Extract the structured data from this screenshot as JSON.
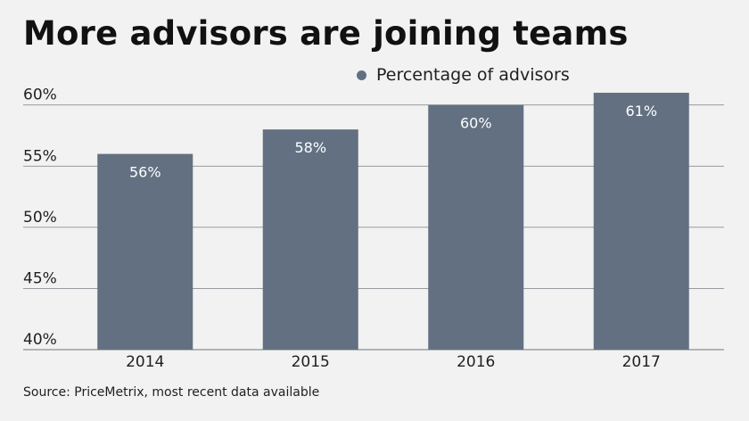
{
  "chart_data": {
    "type": "bar",
    "title": "More advisors are joining teams",
    "categories": [
      "2014",
      "2015",
      "2016",
      "2017"
    ],
    "series": [
      {
        "name": "Percentage of advisors",
        "values": [
          56,
          58,
          60,
          61
        ],
        "labels": [
          "56%",
          "58%",
          "60%",
          "61%"
        ],
        "color": "#627082"
      }
    ],
    "yticks": [
      {
        "value": 40,
        "label": "40%"
      },
      {
        "value": 45,
        "label": "45%"
      },
      {
        "value": 50,
        "label": "50%"
      },
      {
        "value": 55,
        "label": "55%"
      },
      {
        "value": 60,
        "label": "60%"
      }
    ],
    "ylim": [
      40,
      61
    ],
    "grid": true,
    "legend_position": "top-right",
    "gridline_color": "#8a8f94",
    "xlabel": "",
    "ylabel": ""
  },
  "source": "Source: PriceMetrix, most recent data available"
}
